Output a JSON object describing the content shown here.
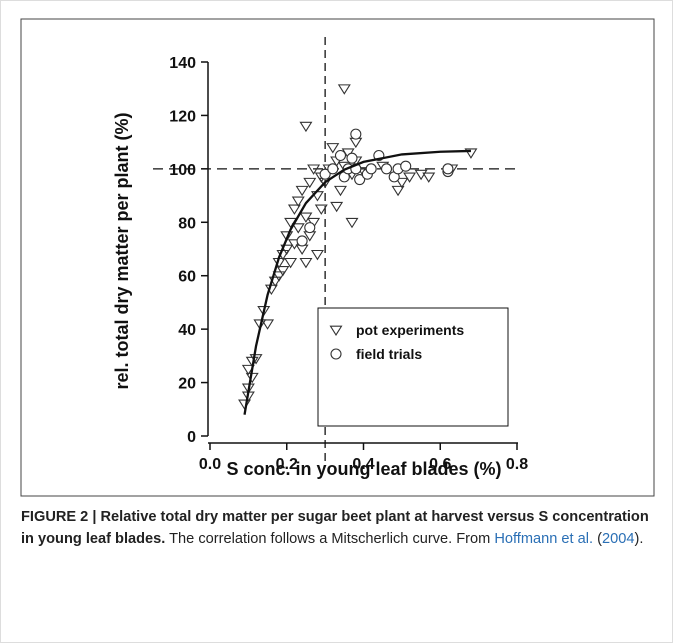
{
  "chart_data": {
    "type": "scatter",
    "xlabel": "S conc. in young leaf blades (%)",
    "ylabel": "rel. total dry matter per plant (%)",
    "xlim": [
      0,
      0.8
    ],
    "ylim": [
      0,
      140
    ],
    "xticks": [
      {
        "value": 0,
        "label": "0.0"
      },
      0.2,
      0.4,
      0.6,
      {
        "value": 0.8,
        "label": "0.8"
      }
    ],
    "yticks": [
      0,
      20,
      40,
      60,
      80,
      100,
      120,
      140
    ],
    "series": [
      {
        "name": "pot experiments",
        "marker": "triangle",
        "color": "#333333",
        "x": [
          0.09,
          0.1,
          0.1,
          0.11,
          0.1,
          0.11,
          0.12,
          0.13,
          0.14,
          0.15,
          0.16,
          0.17,
          0.18,
          0.18,
          0.19,
          0.19,
          0.2,
          0.2,
          0.21,
          0.21,
          0.22,
          0.22,
          0.23,
          0.23,
          0.24,
          0.24,
          0.25,
          0.25,
          0.25,
          0.26,
          0.26,
          0.27,
          0.27,
          0.28,
          0.28,
          0.29,
          0.29,
          0.3,
          0.31,
          0.32,
          0.33,
          0.33,
          0.34,
          0.35,
          0.35,
          0.36,
          0.37,
          0.37,
          0.38,
          0.38,
          0.4,
          0.45,
          0.49,
          0.5,
          0.52,
          0.55,
          0.57,
          0.63,
          0.68
        ],
        "values": [
          12,
          15,
          18,
          22,
          25,
          28,
          29,
          42,
          47,
          42,
          55,
          58,
          60,
          65,
          62,
          68,
          70,
          75,
          65,
          80,
          72,
          85,
          78,
          88,
          70,
          92,
          65,
          82,
          116,
          75,
          95,
          80,
          100,
          68,
          90,
          97,
          85,
          95,
          100,
          108,
          103,
          86,
          92,
          130,
          101,
          106,
          80,
          98,
          110,
          103,
          99,
          101,
          92,
          95,
          97,
          98,
          97,
          100,
          106
        ]
      },
      {
        "name": "field trials",
        "marker": "circle",
        "color": "#333333",
        "x": [
          0.24,
          0.26,
          0.3,
          0.32,
          0.34,
          0.35,
          0.36,
          0.37,
          0.38,
          0.38,
          0.39,
          0.41,
          0.42,
          0.44,
          0.46,
          0.48,
          0.49,
          0.51,
          0.62,
          0.62
        ],
        "values": [
          73,
          78,
          98,
          100,
          105,
          97,
          100,
          104,
          113,
          100,
          96,
          98,
          100,
          105,
          100,
          97,
          100,
          101,
          99,
          100
        ]
      }
    ],
    "fit": {
      "x": [
        0.09,
        0.12,
        0.15,
        0.18,
        0.21,
        0.25,
        0.3,
        0.35,
        0.4,
        0.5,
        0.6,
        0.68
      ],
      "values": [
        8.0,
        33.7,
        52.8,
        66.9,
        77.3,
        87.2,
        95.0,
        99.7,
        102.6,
        105.4,
        106.4,
        106.7
      ]
    },
    "reference_lines": {
      "x": 0.3,
      "y": 100
    },
    "legend": "lower right"
  },
  "caption": {
    "bold": "FIGURE 2 | Relative total dry matter per sugar beet plant at harvest versus S concentration in young leaf blades.",
    "text": " The correlation follows a Mitscherlich curve. From ",
    "author": "Hoffmann et al.",
    "open": " (",
    "year": "2004",
    "close": ")."
  }
}
